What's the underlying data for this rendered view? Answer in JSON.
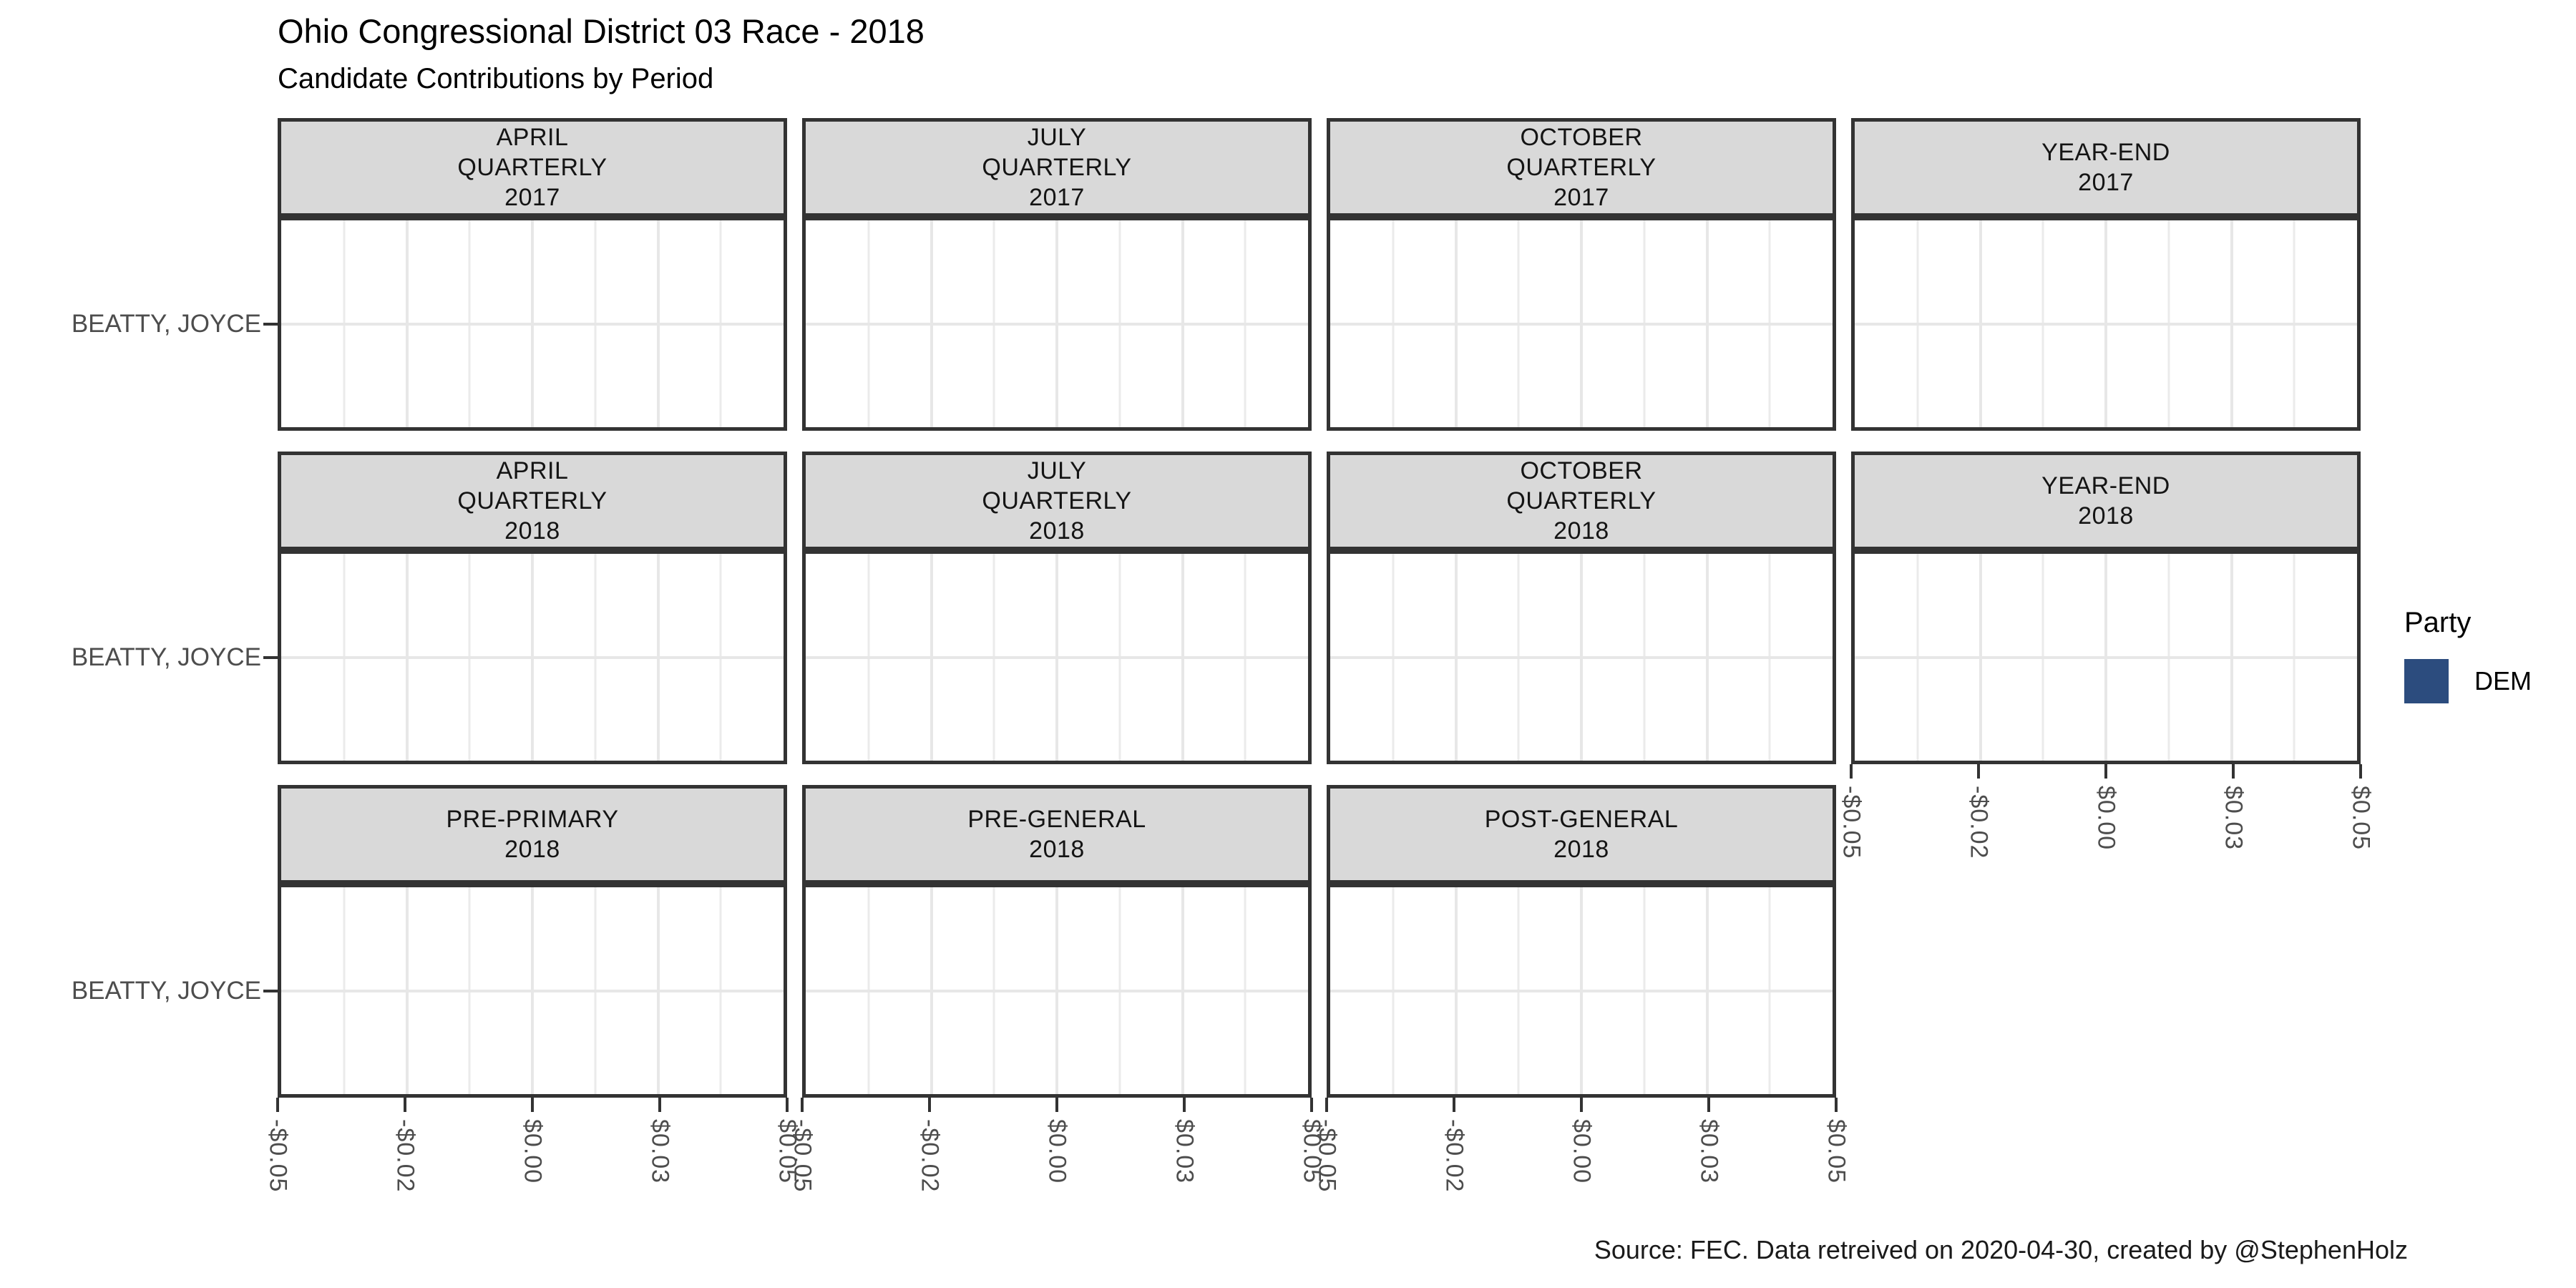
{
  "title": "Ohio Congressional District 03 Race - 2018",
  "subtitle": "Candidate Contributions by Period",
  "caption": "Source: FEC. Data retreived on 2020-04-30, created by @StephenHolz",
  "legend": {
    "title": "Party",
    "items": [
      {
        "label": "DEM",
        "color": "#2c4c7e"
      }
    ]
  },
  "y_axis": {
    "categories": [
      "BEATTY, JOYCE"
    ],
    "row_labels": [
      "BEATTY, JOYCE",
      "BEATTY, JOYCE",
      "BEATTY, JOYCE"
    ]
  },
  "x_axis": {
    "tick_labels": [
      "-$0.05",
      "-$0.02",
      "$0.00",
      "$0.03",
      "$0.05"
    ]
  },
  "facets": [
    {
      "row": 0,
      "col": 0,
      "lines": [
        "APRIL",
        "QUARTERLY",
        "2017"
      ],
      "x_axis": false
    },
    {
      "row": 0,
      "col": 1,
      "lines": [
        "JULY",
        "QUARTERLY",
        "2017"
      ],
      "x_axis": false
    },
    {
      "row": 0,
      "col": 2,
      "lines": [
        "OCTOBER",
        "QUARTERLY",
        "2017"
      ],
      "x_axis": false
    },
    {
      "row": 0,
      "col": 3,
      "lines": [
        "YEAR-END",
        "2017"
      ],
      "x_axis": false
    },
    {
      "row": 1,
      "col": 0,
      "lines": [
        "APRIL",
        "QUARTERLY",
        "2018"
      ],
      "x_axis": false
    },
    {
      "row": 1,
      "col": 1,
      "lines": [
        "JULY",
        "QUARTERLY",
        "2018"
      ],
      "x_axis": false
    },
    {
      "row": 1,
      "col": 2,
      "lines": [
        "OCTOBER",
        "QUARTERLY",
        "2018"
      ],
      "x_axis": false
    },
    {
      "row": 1,
      "col": 3,
      "lines": [
        "YEAR-END",
        "2018"
      ],
      "x_axis": true
    },
    {
      "row": 2,
      "col": 0,
      "lines": [
        "PRE-PRIMARY",
        "2018"
      ],
      "x_axis": true
    },
    {
      "row": 2,
      "col": 1,
      "lines": [
        "PRE-GENERAL",
        "2018"
      ],
      "x_axis": true
    },
    {
      "row": 2,
      "col": 2,
      "lines": [
        "POST-GENERAL",
        "2018"
      ],
      "x_axis": true
    }
  ],
  "colors": {
    "strip_fill": "#d9d9d9",
    "panel_border": "#333333",
    "gridline": "#ebebeb",
    "axis_text": "#4d4d4d",
    "dem_blue": "#2c4c7e"
  },
  "chart_data": {
    "type": "bar",
    "orientation": "horizontal",
    "title": "Ohio Congressional District 03 Race - 2018",
    "subtitle": "Candidate Contributions by Period",
    "caption": "Source: FEC. Data retreived on 2020-04-30, created by @StephenHolz",
    "facet_variable": "Period",
    "facets": [
      "APRIL QUARTERLY 2017",
      "JULY QUARTERLY 2017",
      "OCTOBER QUARTERLY 2017",
      "YEAR-END 2017",
      "APRIL QUARTERLY 2018",
      "JULY QUARTERLY 2018",
      "OCTOBER QUARTERLY 2018",
      "YEAR-END 2018",
      "PRE-PRIMARY 2018",
      "PRE-GENERAL 2018",
      "POST-GENERAL 2018"
    ],
    "categories": [
      "BEATTY, JOYCE"
    ],
    "series": [
      {
        "name": "DEM",
        "color": "#2c4c7e",
        "values_by_facet": [
          0,
          0,
          0,
          0,
          0,
          0,
          0,
          0,
          0,
          0,
          0
        ]
      }
    ],
    "xlim": [
      -0.05,
      0.05
    ],
    "x_tick_values": [
      -0.05,
      -0.025,
      0,
      0.025,
      0.05
    ],
    "x_tick_labels": [
      "-$0.05",
      "-$0.02",
      "$0.00",
      "$0.03",
      "$0.05"
    ],
    "grid": true,
    "minor_gridlines": true,
    "legend_position": "right",
    "legend_title": "Party",
    "note": "All panels are empty: displayed contribution values are zero, so no bars are drawn."
  }
}
